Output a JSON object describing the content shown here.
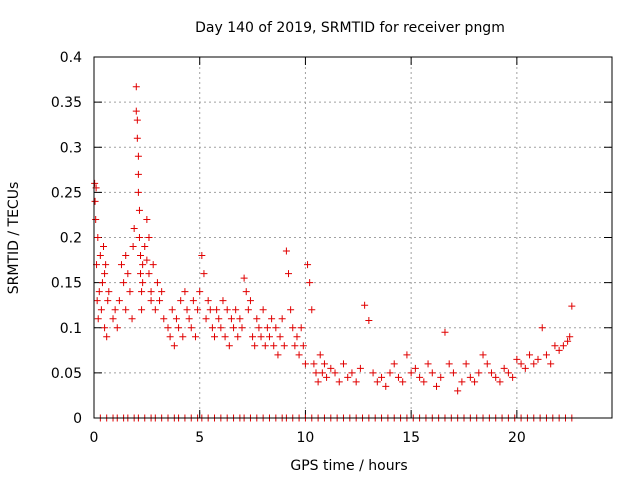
{
  "chart_data": {
    "type": "scatter",
    "title": "Day 140 of 2019, SRMTID for receiver pngm",
    "xlabel": "GPS time / hours",
    "ylabel": "SRMTID / TECUs",
    "xlim": [
      0,
      24.5
    ],
    "ylim": [
      0,
      0.4
    ],
    "grid": true,
    "marker": "+",
    "x_ticks": [
      0,
      5,
      10,
      15,
      20
    ],
    "y_ticks": [
      0,
      0.05,
      0.1,
      0.15,
      0.2,
      0.25,
      0.3,
      0.35,
      0.4
    ],
    "y_tick_labels": [
      "0",
      "0.05",
      "0.1",
      "0.15",
      "0.2",
      "0.25",
      "0.3",
      "0.35",
      "0.4"
    ],
    "series": [
      {
        "name": "SRMTID",
        "color": "#e00000",
        "x": [
          0.03,
          0.05,
          0.08,
          0.1,
          0.12,
          0.15,
          0.18,
          0.2,
          0.25,
          0.3,
          0.35,
          0.4,
          0.45,
          0.5,
          0.5,
          0.55,
          0.6,
          0.65,
          0.7,
          0.9,
          1.0,
          1.1,
          1.2,
          1.3,
          1.4,
          1.5,
          1.5,
          1.6,
          1.7,
          1.8,
          1.85,
          1.9,
          2.0,
          2.0,
          2.05,
          2.05,
          2.1,
          2.1,
          2.1,
          2.15,
          2.15,
          2.2,
          2.2,
          2.25,
          2.25,
          2.3,
          2.3,
          2.4,
          2.5,
          2.5,
          2.6,
          2.6,
          2.7,
          2.7,
          2.8,
          2.9,
          3.0,
          3.1,
          3.2,
          3.3,
          3.5,
          3.6,
          3.7,
          3.8,
          3.9,
          4.0,
          4.1,
          4.2,
          4.3,
          4.4,
          4.5,
          4.6,
          4.7,
          4.8,
          4.9,
          5.0,
          5.1,
          5.2,
          5.3,
          5.4,
          5.5,
          5.6,
          5.7,
          5.8,
          5.9,
          6.0,
          6.1,
          6.2,
          6.3,
          6.4,
          6.5,
          6.6,
          6.7,
          6.8,
          6.9,
          7.0,
          7.1,
          7.2,
          7.3,
          7.4,
          7.5,
          7.6,
          7.7,
          7.8,
          7.9,
          8.0,
          8.1,
          8.2,
          8.3,
          8.4,
          8.5,
          8.6,
          8.7,
          8.8,
          8.9,
          9.0,
          9.1,
          9.2,
          9.3,
          9.4,
          9.5,
          9.6,
          9.7,
          9.8,
          9.9,
          10.0,
          10.1,
          10.2,
          10.3,
          10.4,
          10.5,
          10.6,
          10.7,
          10.8,
          10.9,
          11.0,
          11.2,
          11.4,
          11.6,
          11.8,
          12.0,
          12.2,
          12.4,
          12.6,
          12.8,
          13.0,
          13.2,
          13.4,
          13.6,
          13.8,
          14.0,
          14.2,
          14.4,
          14.6,
          14.8,
          15.0,
          15.2,
          15.4,
          15.6,
          15.8,
          16.0,
          16.2,
          16.4,
          16.6,
          16.8,
          17.0,
          17.2,
          17.4,
          17.6,
          17.8,
          18.0,
          18.2,
          18.4,
          18.6,
          18.8,
          19.0,
          19.2,
          19.4,
          19.6,
          19.8,
          20.0,
          20.2,
          20.4,
          20.6,
          20.8,
          21.0,
          21.2,
          21.4,
          21.6,
          21.8,
          22.0,
          22.2,
          22.4,
          22.5,
          22.6
        ],
        "y": [
          0.26,
          0.24,
          0.22,
          0.255,
          0.17,
          0.13,
          0.2,
          0.11,
          0.14,
          0.18,
          0.12,
          0.15,
          0.19,
          0.1,
          0.16,
          0.17,
          0.09,
          0.13,
          0.14,
          0.11,
          0.12,
          0.1,
          0.13,
          0.17,
          0.15,
          0.18,
          0.12,
          0.16,
          0.14,
          0.11,
          0.19,
          0.21,
          0.367,
          0.34,
          0.33,
          0.31,
          0.29,
          0.27,
          0.25,
          0.23,
          0.2,
          0.18,
          0.16,
          0.14,
          0.12,
          0.17,
          0.15,
          0.19,
          0.22,
          0.175,
          0.2,
          0.16,
          0.14,
          0.13,
          0.17,
          0.12,
          0.15,
          0.13,
          0.14,
          0.11,
          0.1,
          0.09,
          0.12,
          0.08,
          0.11,
          0.1,
          0.13,
          0.09,
          0.14,
          0.12,
          0.11,
          0.1,
          0.13,
          0.09,
          0.12,
          0.14,
          0.18,
          0.16,
          0.11,
          0.13,
          0.12,
          0.1,
          0.09,
          0.12,
          0.11,
          0.1,
          0.13,
          0.09,
          0.12,
          0.08,
          0.11,
          0.1,
          0.12,
          0.09,
          0.11,
          0.1,
          0.155,
          0.14,
          0.12,
          0.13,
          0.09,
          0.08,
          0.11,
          0.1,
          0.09,
          0.12,
          0.08,
          0.1,
          0.09,
          0.11,
          0.08,
          0.1,
          0.07,
          0.09,
          0.11,
          0.08,
          0.185,
          0.16,
          0.12,
          0.1,
          0.08,
          0.09,
          0.07,
          0.1,
          0.08,
          0.06,
          0.17,
          0.15,
          0.12,
          0.06,
          0.05,
          0.04,
          0.07,
          0.05,
          0.06,
          0.045,
          0.055,
          0.05,
          0.04,
          0.06,
          0.045,
          0.05,
          0.04,
          0.055,
          0.125,
          0.108,
          0.05,
          0.04,
          0.045,
          0.035,
          0.05,
          0.06,
          0.045,
          0.04,
          0.07,
          0.05,
          0.055,
          0.045,
          0.04,
          0.06,
          0.05,
          0.035,
          0.045,
          0.095,
          0.06,
          0.05,
          0.03,
          0.04,
          0.06,
          0.045,
          0.04,
          0.05,
          0.07,
          0.06,
          0.05,
          0.045,
          0.04,
          0.055,
          0.05,
          0.045,
          0.065,
          0.06,
          0.055,
          0.07,
          0.06,
          0.065,
          0.1,
          0.07,
          0.06,
          0.08,
          0.075,
          0.08,
          0.085,
          0.09,
          0.124
        ],
        "x_zero": [
          0.3,
          0.6,
          0.9,
          1.1,
          1.4,
          1.6,
          1.9,
          2.1,
          2.4,
          2.7,
          2.9,
          3.2,
          3.5,
          3.8,
          4.0,
          4.3,
          4.6,
          4.9,
          5.1,
          5.4,
          5.7,
          6.0,
          6.3,
          6.6,
          6.9,
          7.1,
          7.4,
          7.7,
          8.0,
          8.3,
          8.6,
          8.9,
          9.1,
          9.4,
          9.7,
          10.0,
          10.3,
          10.6,
          10.9,
          11.2,
          11.5,
          11.8,
          12.1,
          12.4,
          12.7,
          13.0,
          13.3,
          13.6,
          13.9,
          14.2,
          14.5,
          14.8,
          15.1,
          15.4,
          15.7,
          16.0,
          16.3,
          16.6,
          16.9,
          17.2,
          17.5,
          17.8,
          18.1,
          18.4,
          18.7,
          19.0,
          19.3,
          19.6,
          19.9,
          20.2,
          20.5,
          20.8,
          21.1,
          21.4,
          21.7,
          22.0,
          22.3,
          22.6
        ]
      }
    ]
  }
}
